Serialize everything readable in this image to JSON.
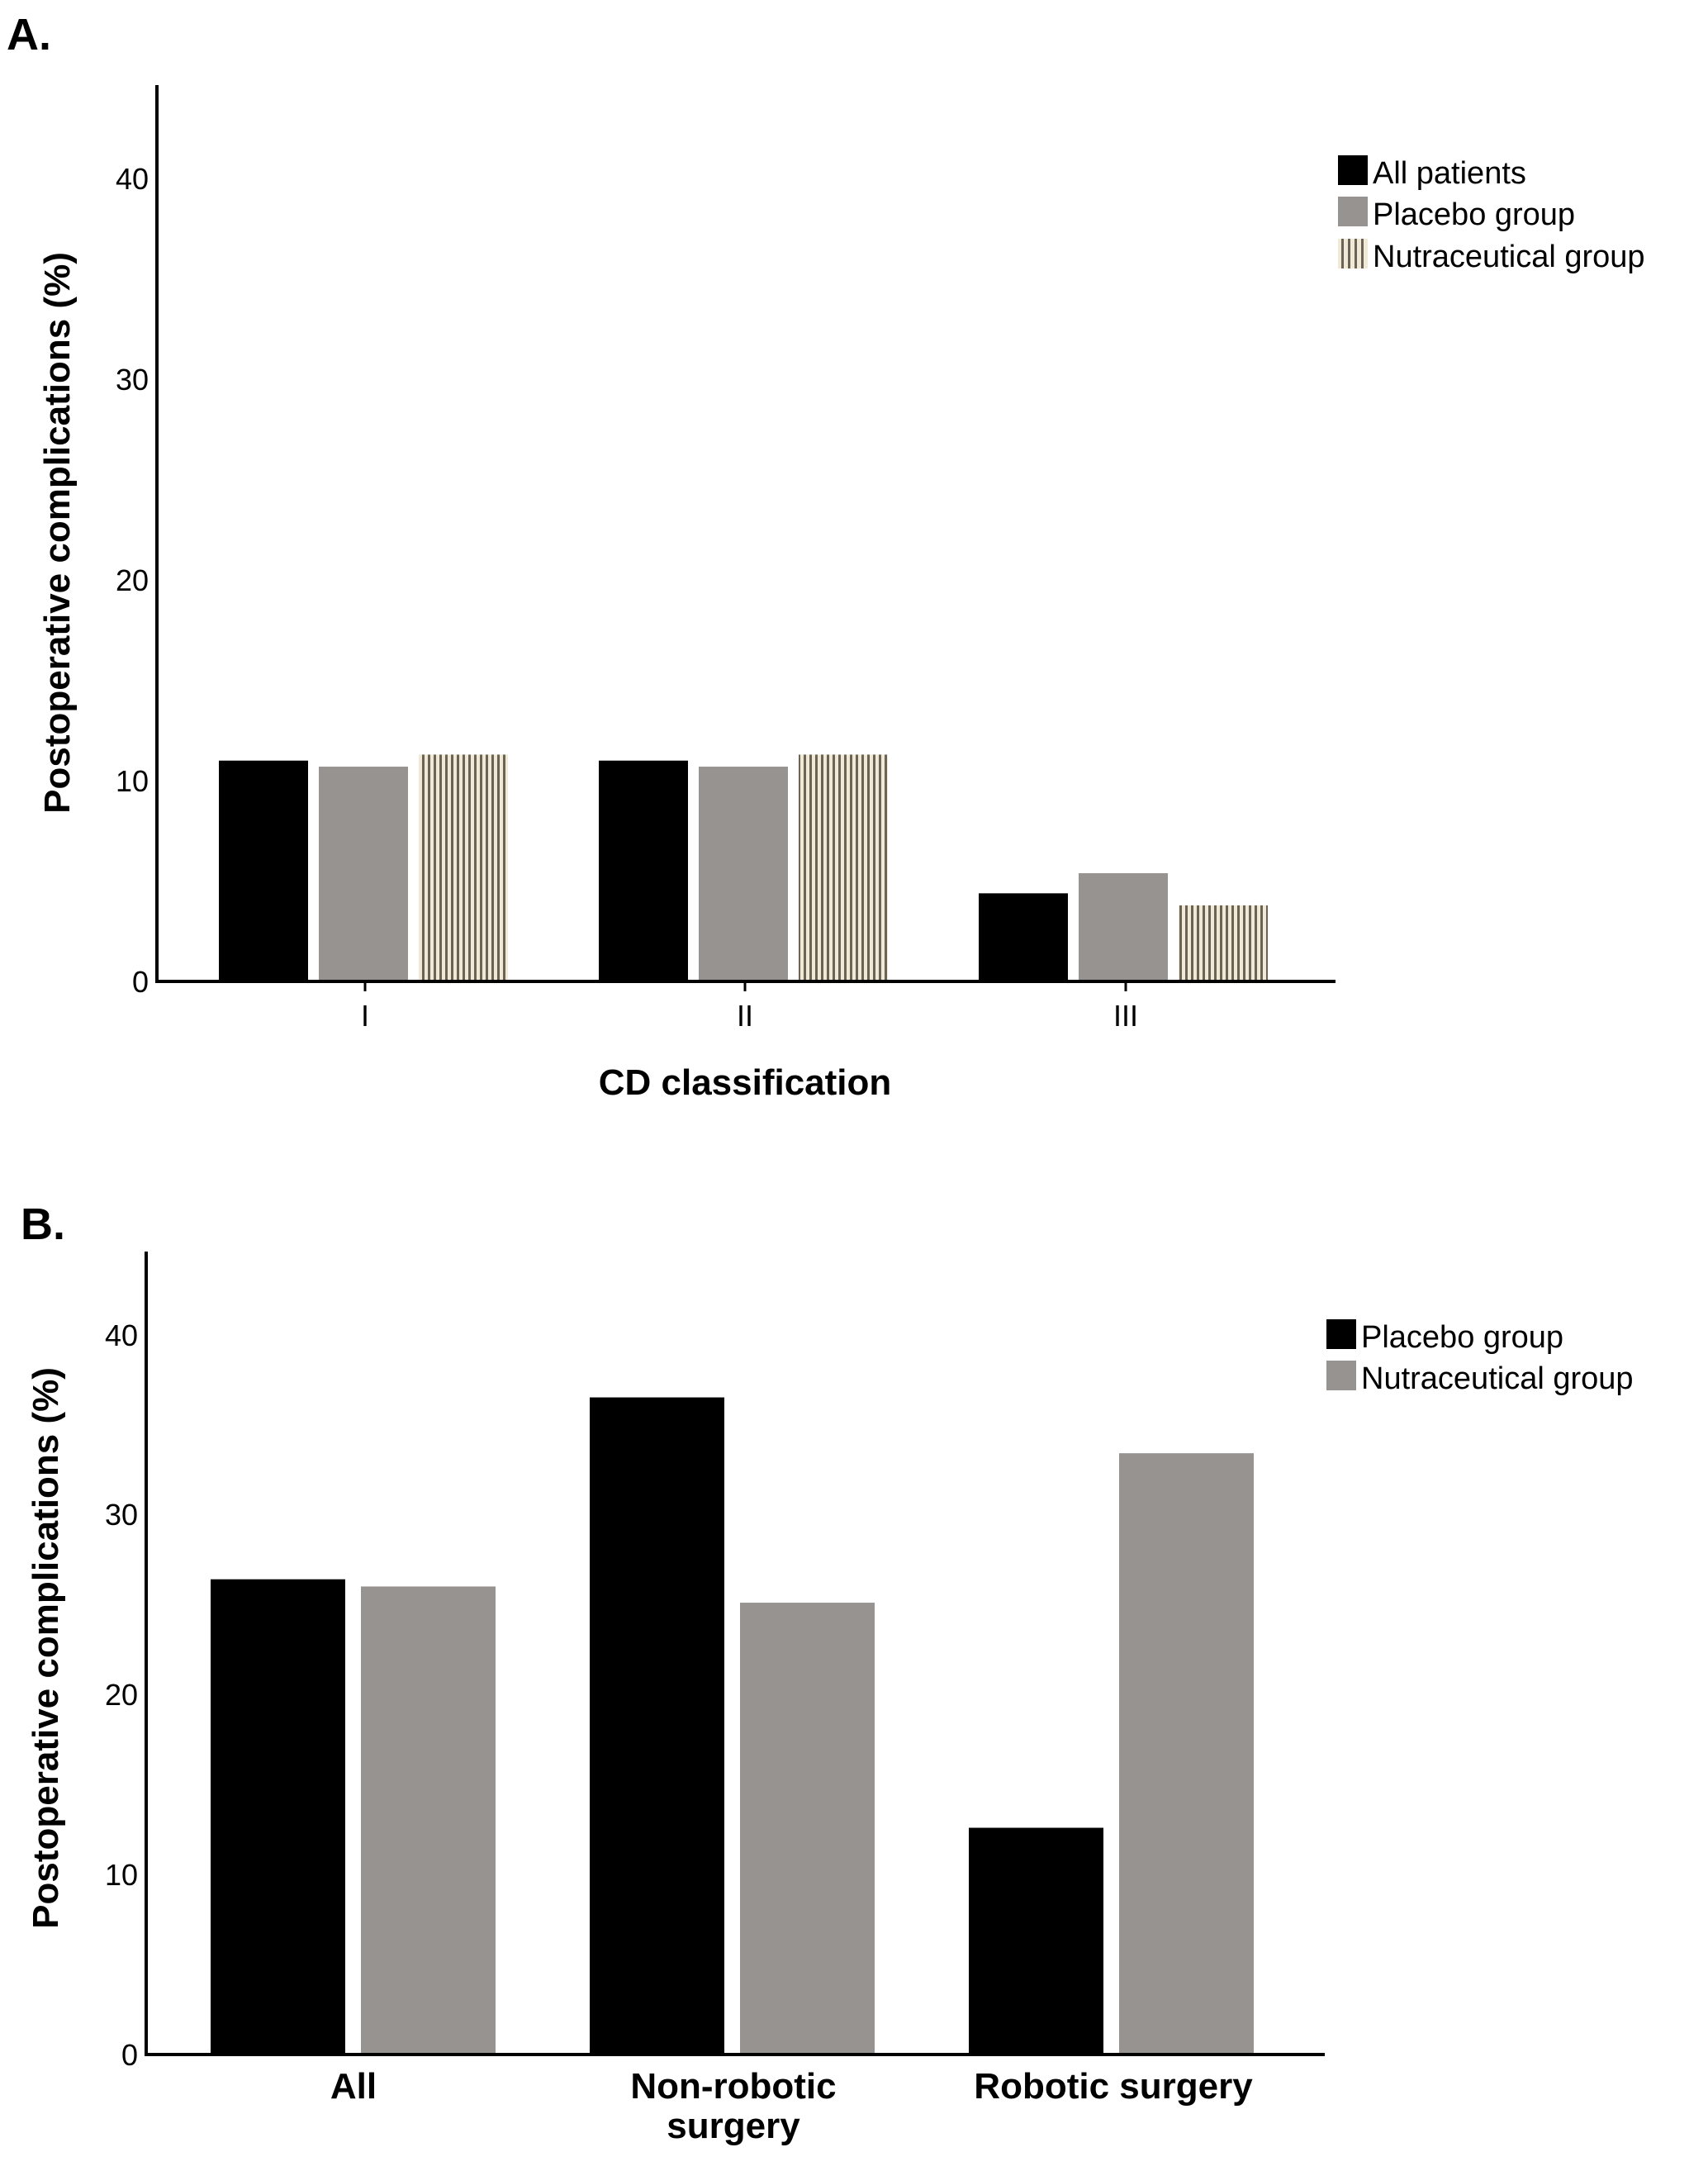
{
  "chart_data": [
    {
      "panel_label": "A.",
      "type": "bar",
      "xlabel": "CD classification",
      "ylabel": "Postoperative complications (%)",
      "ylim": [
        0,
        44.5
      ],
      "yticks": [
        "0",
        "10",
        "20",
        "30",
        "40"
      ],
      "categories": [
        "I",
        "II",
        "III"
      ],
      "series": [
        {
          "name": "All patients",
          "color": "#000000",
          "pattern": "solid",
          "values": [
            10.9,
            10.9,
            4.3
          ]
        },
        {
          "name": "Placebo group",
          "color": "#979390",
          "pattern": "solid",
          "values": [
            10.6,
            10.6,
            5.3
          ]
        },
        {
          "name": "Nutraceutical group",
          "color": "#efe9d6",
          "pattern": "vertical-stripes",
          "stripe_color": "#6b6355",
          "values": [
            11.2,
            11.2,
            3.7
          ]
        }
      ],
      "legend_position": "top-right"
    },
    {
      "panel_label": "B.",
      "type": "bar",
      "xlabel": "",
      "ylabel": "Postoperative complications (%)",
      "ylim": [
        0,
        44.5
      ],
      "yticks": [
        "0",
        "10",
        "20",
        "30",
        "40"
      ],
      "categories": [
        "All",
        "Non-robotic\nsurgery",
        "Robotic surgery"
      ],
      "series": [
        {
          "name": "Placebo group",
          "color": "#000000",
          "pattern": "solid",
          "values": [
            26.3,
            36.4,
            12.5
          ]
        },
        {
          "name": "Nutraceutical group",
          "color": "#979390",
          "pattern": "solid",
          "values": [
            25.9,
            25.0,
            33.3
          ]
        }
      ],
      "legend_position": "top-right"
    }
  ]
}
